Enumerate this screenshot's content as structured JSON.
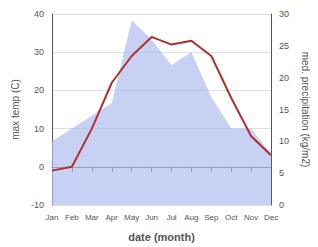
{
  "chart_data": {
    "type": "line",
    "xlabel": "date (month)",
    "ylabel": "max temp (C)",
    "y2label": "med. precipitation (kg/m2)",
    "categories": [
      "Jan",
      "Feb",
      "Mar",
      "Apr",
      "May",
      "Jun",
      "Jul",
      "Aug",
      "Sep",
      "Oct",
      "Nov",
      "Dec"
    ],
    "series": [
      {
        "type": "area",
        "color": "#b0bef0",
        "axis": "y2",
        "values": [
          10,
          12,
          14,
          16,
          29,
          26,
          22,
          24,
          17,
          12,
          12,
          8
        ]
      },
      {
        "type": "line",
        "color": "#b03030",
        "values": [
          -1,
          0,
          10,
          22,
          29,
          34,
          32,
          33,
          29,
          18,
          8,
          3
        ]
      }
    ],
    "ylim": [
      -10,
      40
    ],
    "yticks": [
      -10,
      0,
      10,
      20,
      30,
      40
    ],
    "y2lim": [
      0,
      30
    ],
    "y2ticks": [
      0,
      5,
      10,
      15,
      20,
      25,
      30
    ],
    "grid": true
  }
}
